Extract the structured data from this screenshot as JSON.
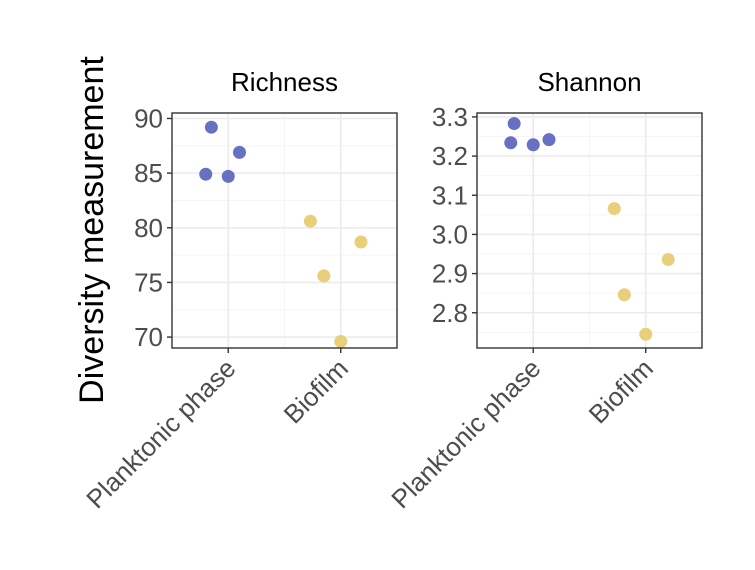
{
  "chart_data": {
    "type": "scatter",
    "ylabel": "Diversity measurement",
    "facets": [
      {
        "title": "Richness",
        "categories": [
          "Planktonic phase",
          "Biofilm"
        ],
        "ylim": [
          69,
          90.5
        ],
        "yticks": [
          70,
          75,
          80,
          85,
          90
        ],
        "ytick_labels": [
          "70",
          "75",
          "80",
          "85",
          "90"
        ],
        "points": [
          {
            "group": "Planktonic phase",
            "offset": -0.15,
            "y": 89.2
          },
          {
            "group": "Planktonic phase",
            "offset": 0.1,
            "y": 86.9
          },
          {
            "group": "Planktonic phase",
            "offset": -0.2,
            "y": 84.9
          },
          {
            "group": "Planktonic phase",
            "offset": 0.0,
            "y": 84.7
          },
          {
            "group": "Biofilm",
            "offset": -0.27,
            "y": 80.6
          },
          {
            "group": "Biofilm",
            "offset": 0.18,
            "y": 78.7
          },
          {
            "group": "Biofilm",
            "offset": -0.15,
            "y": 75.6
          },
          {
            "group": "Biofilm",
            "offset": 0.0,
            "y": 69.6
          }
        ]
      },
      {
        "title": "Shannon",
        "categories": [
          "Planktonic phase",
          "Biofilm"
        ],
        "ylim": [
          2.71,
          3.31
        ],
        "yticks": [
          2.8,
          2.9,
          3.0,
          3.1,
          3.2,
          3.3
        ],
        "ytick_labels": [
          "2.8",
          "2.9",
          "3.0",
          "3.1",
          "3.2",
          "3.3"
        ],
        "points": [
          {
            "group": "Planktonic phase",
            "offset": -0.17,
            "y": 3.283
          },
          {
            "group": "Planktonic phase",
            "offset": 0.14,
            "y": 3.242
          },
          {
            "group": "Planktonic phase",
            "offset": -0.2,
            "y": 3.234
          },
          {
            "group": "Planktonic phase",
            "offset": 0.0,
            "y": 3.229
          },
          {
            "group": "Biofilm",
            "offset": -0.28,
            "y": 3.066
          },
          {
            "group": "Biofilm",
            "offset": 0.2,
            "y": 2.936
          },
          {
            "group": "Biofilm",
            "offset": -0.19,
            "y": 2.846
          },
          {
            "group": "Biofilm",
            "offset": 0.0,
            "y": 2.745
          }
        ]
      }
    ],
    "colors": {
      "Planktonic phase": "#6870c4",
      "Biofilm": "#e8cf7a"
    },
    "grid": true,
    "legend": "none"
  }
}
